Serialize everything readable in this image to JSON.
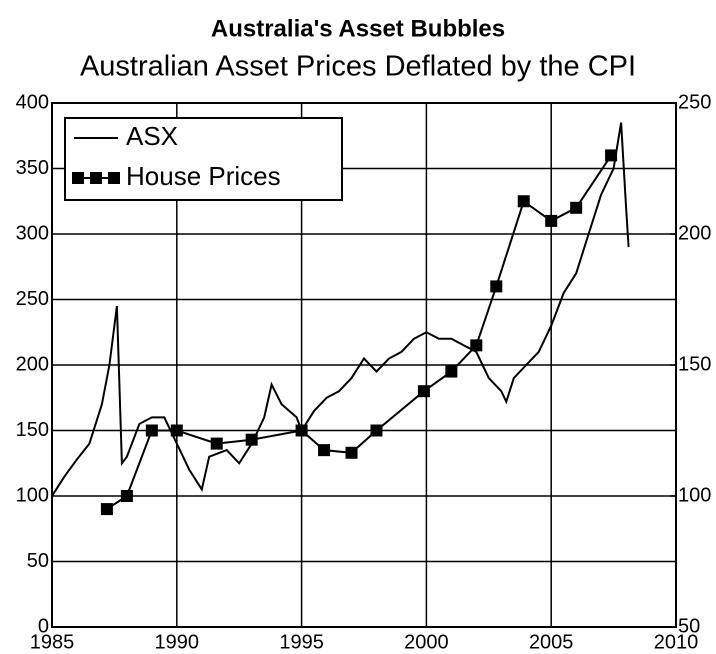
{
  "chart_data": {
    "type": "line",
    "title": "Australia's Asset Bubbles",
    "subtitle": "Australian Asset Prices Deflated by the CPI",
    "xlim": [
      1985,
      2010
    ],
    "xticks": [
      1985,
      1990,
      1995,
      2000,
      2005,
      2010
    ],
    "ylim": [
      0,
      400
    ],
    "yticks": [
      0,
      50,
      100,
      150,
      200,
      250,
      300,
      350,
      400
    ],
    "y2lim": [
      50,
      250
    ],
    "y2ticks": [
      50,
      100,
      150,
      200,
      250
    ],
    "grid": true,
    "legend": "upper left",
    "series": [
      {
        "name": "ASX",
        "color": "#000000",
        "marker": "none",
        "x": [
          1985.0,
          1985.5,
          1986.0,
          1986.5,
          1987.0,
          1987.3,
          1987.6,
          1987.8,
          1988.0,
          1988.5,
          1989.0,
          1989.5,
          1990.0,
          1990.5,
          1991.0,
          1991.3,
          1992.0,
          1992.5,
          1993.0,
          1993.5,
          1993.8,
          1994.2,
          1994.8,
          1995.0,
          1995.5,
          1996.0,
          1996.5,
          1997.0,
          1997.5,
          1998.0,
          1998.5,
          1999.0,
          1999.5,
          2000.0,
          2000.5,
          2001.0,
          2001.5,
          2002.0,
          2002.5,
          2003.0,
          2003.2,
          2003.5,
          2004.0,
          2004.5,
          2005.0,
          2005.5,
          2006.0,
          2006.5,
          2007.0,
          2007.5,
          2007.8,
          2008.0,
          2008.1
        ],
        "values": [
          100,
          115,
          128,
          140,
          170,
          200,
          245,
          125,
          130,
          155,
          160,
          160,
          140,
          120,
          105,
          130,
          135,
          125,
          140,
          160,
          185,
          170,
          160,
          150,
          165,
          175,
          180,
          190,
          205,
          195,
          205,
          210,
          220,
          225,
          220,
          220,
          215,
          210,
          190,
          180,
          172,
          190,
          200,
          210,
          230,
          255,
          270,
          300,
          330,
          350,
          385,
          320,
          290
        ]
      },
      {
        "name": "House Prices",
        "color": "#000000",
        "marker": "square",
        "axis": "y2",
        "x": [
          1987.2,
          1988.0,
          1989.0,
          1990.0,
          1991.6,
          1993.0,
          1995.0,
          1995.9,
          1997.0,
          1998.0,
          1999.9,
          2001.0,
          2002.0,
          2002.8,
          2003.9,
          2005.0,
          2006.0,
          2007.4
        ],
        "values": [
          95,
          100,
          125,
          125,
          120,
          121.5,
          125,
          117.5,
          116.5,
          125,
          140,
          147.5,
          157.5,
          180,
          212.5,
          205,
          210,
          230
        ]
      }
    ]
  }
}
